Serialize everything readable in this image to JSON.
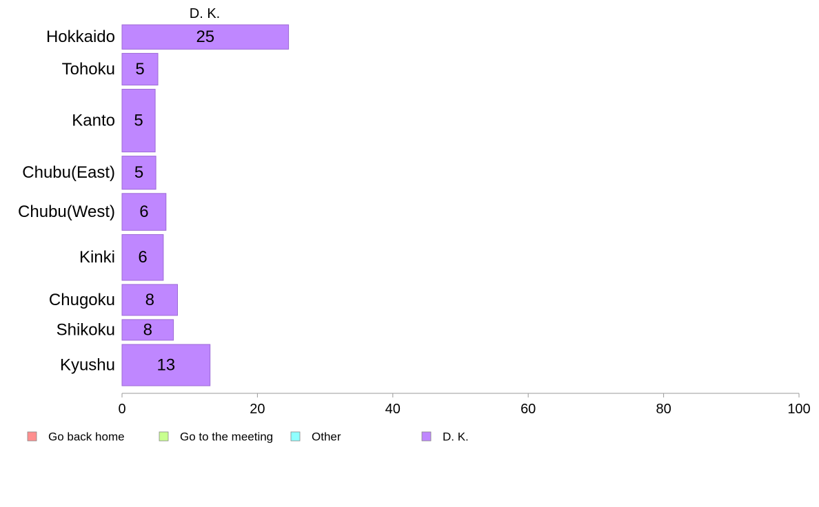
{
  "chart_data": {
    "type": "bar",
    "orientation": "horizontal",
    "categories": [
      "Hokkaido",
      "Tohoku",
      "Kanto",
      "Chubu(East)",
      "Chubu(West)",
      "Kinki",
      "Chugoku",
      "Shikoku",
      "Kyushu"
    ],
    "category_weights": [
      33,
      43,
      85,
      45,
      50,
      62,
      42,
      28,
      56
    ],
    "series_title": "D. K.",
    "series": [
      {
        "name": "D. K.",
        "values": [
          24.6,
          5.3,
          4.9,
          5.0,
          6.5,
          6.1,
          8.2,
          7.6,
          13.0
        ],
        "labels": [
          "25",
          "5",
          "5",
          "5",
          "6",
          "6",
          "8",
          "8",
          "13"
        ]
      }
    ],
    "xlim": [
      0,
      100
    ],
    "xticks": [
      0,
      20,
      40,
      60,
      80,
      100
    ],
    "xtick_labels": [
      "0",
      "20",
      "40",
      "60",
      "80",
      "100"
    ],
    "grid": false,
    "legend_position": "bottom-left",
    "legend": [
      {
        "label": "Go back home",
        "color": "#ff8f8f"
      },
      {
        "label": "Go to the meeting",
        "color": "#c8ff8f"
      },
      {
        "label": "Other",
        "color": "#8fffff"
      },
      {
        "label": "D. K.",
        "color": "#bf87ff"
      }
    ],
    "colors": {
      "bar_fill": "#bf87ff",
      "bar_stroke": "#9c6ad6",
      "axis": "#999999"
    }
  }
}
